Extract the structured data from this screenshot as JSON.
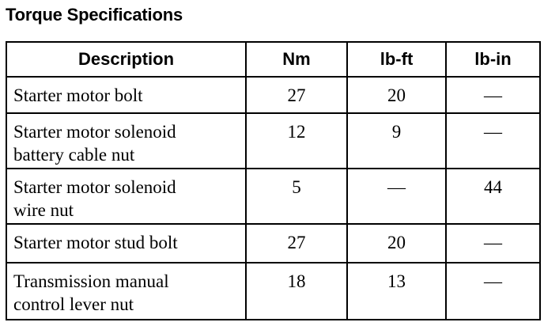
{
  "title": "Torque Specifications",
  "headers": [
    "Description",
    "Nm",
    "lb-ft",
    "lb-in"
  ],
  "rows": [
    {
      "desc": [
        "Starter motor bolt"
      ],
      "nm": "27",
      "lbft": "20",
      "lbin": "—"
    },
    {
      "desc": [
        "Starter motor solenoid",
        "battery cable nut"
      ],
      "nm": "12",
      "lbft": "9",
      "lbin": "—"
    },
    {
      "desc": [
        "Starter motor solenoid",
        "wire nut"
      ],
      "nm": "5",
      "lbft": "—",
      "lbin": "44"
    },
    {
      "desc": [
        "Starter motor stud bolt"
      ],
      "nm": "27",
      "lbft": "20",
      "lbin": "—"
    },
    {
      "desc": [
        "Transmission manual",
        "control lever nut"
      ],
      "nm": "18",
      "lbft": "13",
      "lbin": "—"
    }
  ]
}
